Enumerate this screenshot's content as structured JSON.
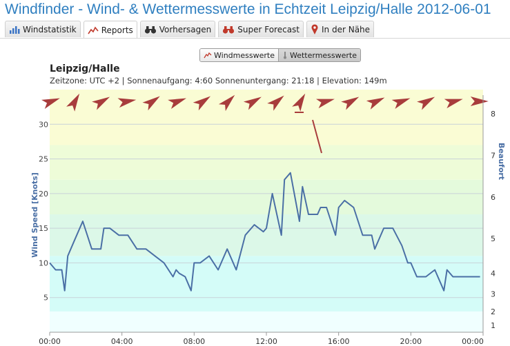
{
  "header": {
    "title": "Windfinder - Wind- & Wettermesswerte in Echtzeit Leipzig/Halle 2012-06-01"
  },
  "tabs": [
    {
      "label": "Windstatistik",
      "icon": "bar-chart-icon"
    },
    {
      "label": "Reports",
      "icon": "line-chart-icon",
      "active": true
    },
    {
      "label": "Vorhersagen",
      "icon": "binoculars-icon"
    },
    {
      "label": "Super Forecast",
      "icon": "binoculars-red-icon"
    },
    {
      "label": "In der Nähe",
      "icon": "map-pin-icon"
    }
  ],
  "toggle": {
    "wind_label": "Windmesswerte",
    "weather_label": "Wettermesswerte",
    "selected": "Wettermesswerte"
  },
  "station": {
    "name": "Leipzig/Halle",
    "info": "Zeitzone: UTC +2 | Sonnenaufgang: 4:60 Sonnenuntergang: 21:18 | Elevation: 149m"
  },
  "colors": {
    "title": "#2f7fc0",
    "line": "#4a6fa5",
    "arrow": "#a83c3c",
    "axis_label": "#4a6fa5"
  },
  "chart_data": {
    "type": "line",
    "ylabel": "Wind Speed [Knots]",
    "y2label": "Beaufort",
    "ylim": [
      0,
      35
    ],
    "xlim": [
      0,
      24
    ],
    "x_ticks": [
      0,
      4,
      8,
      12,
      16,
      20,
      24
    ],
    "x_tick_labels": [
      "00:00",
      "04:00",
      "08:00",
      "12:00",
      "16:00",
      "20:00",
      "00:00"
    ],
    "y_ticks": [
      5,
      10,
      15,
      20,
      25,
      30
    ],
    "beaufort_labels": [
      {
        "label": "1",
        "knots": 1
      },
      {
        "label": "2",
        "knots": 3
      },
      {
        "label": "3",
        "knots": 5.5
      },
      {
        "label": "4",
        "knots": 8.5
      },
      {
        "label": "5",
        "knots": 13.5
      },
      {
        "label": "6",
        "knots": 19.5
      },
      {
        "label": "7",
        "knots": 25.5
      },
      {
        "label": "8",
        "knots": 31.5
      }
    ],
    "bands": [
      {
        "from": 0,
        "to": 3,
        "color": "#f0ffff"
      },
      {
        "from": 3,
        "to": 11,
        "color": "#d4fcf8"
      },
      {
        "from": 11,
        "to": 17,
        "color": "#dcf8e8"
      },
      {
        "from": 17,
        "to": 22,
        "color": "#e4fadc"
      },
      {
        "from": 22,
        "to": 27,
        "color": "#eefcd8"
      },
      {
        "from": 27,
        "to": 35,
        "color": "#fafcd4"
      }
    ],
    "series": [
      {
        "x": [
          0,
          0.33,
          0.67,
          0.83,
          1,
          1.33,
          1.83,
          2.33,
          2.83,
          3.0,
          3.33,
          3.83,
          4.33,
          4.83,
          5.33,
          5.83,
          6.33,
          6.83,
          7.0,
          7.17,
          7.5,
          7.83,
          8.0,
          8.33,
          8.83,
          9.33,
          9.83,
          10.33,
          10.83,
          11.33,
          11.83,
          12.0,
          12.33,
          12.83,
          13.0,
          13.33,
          13.83,
          14.0,
          14.33,
          14.83,
          15.0,
          15.33,
          15.83,
          16.0,
          16.33,
          16.83,
          17.33,
          17.83,
          18.0,
          18.5,
          19.0,
          19.5,
          19.83,
          20.0,
          20.33,
          20.83,
          21.33,
          21.83,
          22.0,
          22.33,
          22.83,
          23.33,
          23.83
        ],
        "y": [
          10,
          9,
          9,
          6,
          11,
          13,
          16,
          12,
          12,
          15,
          15,
          14,
          14,
          12,
          12,
          11,
          10,
          8,
          9,
          8.5,
          8,
          6,
          10,
          10,
          11,
          9,
          12,
          9,
          14,
          15.5,
          14.5,
          15,
          20,
          14,
          22,
          23,
          16,
          21,
          17,
          17,
          18,
          18,
          14,
          18,
          19,
          18,
          14,
          14,
          12,
          15,
          15,
          12.5,
          10,
          10,
          8,
          8,
          9,
          6,
          9,
          8,
          8,
          8,
          8
        ]
      }
    ],
    "direction_arrows": [
      {
        "x": 0.1,
        "deg": 250
      },
      {
        "x": 1.4,
        "deg": 210
      },
      {
        "x": 2.9,
        "deg": 240
      },
      {
        "x": 4.3,
        "deg": 260
      },
      {
        "x": 5.7,
        "deg": 235
      },
      {
        "x": 7.1,
        "deg": 250
      },
      {
        "x": 8.5,
        "deg": 235
      },
      {
        "x": 9.9,
        "deg": 225
      },
      {
        "x": 11.3,
        "deg": 240
      },
      {
        "x": 12.6,
        "deg": 230
      },
      {
        "x": 13.9,
        "deg": 210
      },
      {
        "x": 15.3,
        "deg": 255
      },
      {
        "x": 16.7,
        "deg": 240
      },
      {
        "x": 18.1,
        "deg": 245
      },
      {
        "x": 19.5,
        "deg": 250
      },
      {
        "x": 20.9,
        "deg": 240
      },
      {
        "x": 22.4,
        "deg": 255
      },
      {
        "x": 23.8,
        "deg": 270
      }
    ]
  }
}
